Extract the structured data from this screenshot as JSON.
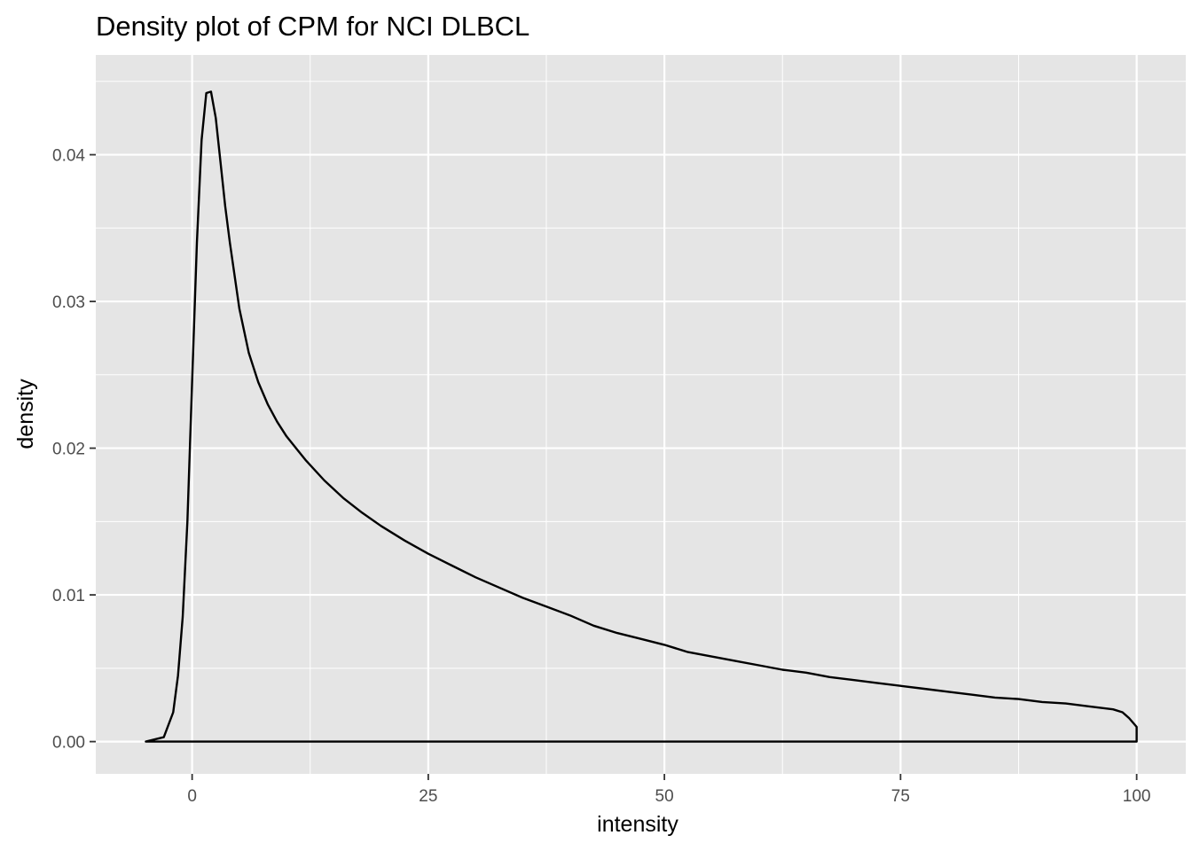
{
  "chart_data": {
    "type": "line",
    "title": "Density plot of CPM for NCI DLBCL",
    "xlabel": "intensity",
    "ylabel": "density",
    "xlim": [
      -10.2,
      105.2
    ],
    "ylim": [
      -0.0022,
      0.0468
    ],
    "x_ticks": [
      0,
      25,
      50,
      75,
      100
    ],
    "x_tick_labels": [
      "0",
      "25",
      "50",
      "75",
      "100"
    ],
    "y_ticks": [
      0.0,
      0.01,
      0.02,
      0.03,
      0.04
    ],
    "y_tick_labels": [
      "0.00",
      "0.01",
      "0.02",
      "0.03",
      "0.04"
    ],
    "grid": true,
    "legend": "none",
    "colors": {
      "panel": "#e5e5e5",
      "grid": "#ffffff",
      "line": "#000000",
      "tick_text": "#4d4d4d"
    },
    "series": [
      {
        "x": [
          -4.9,
          -3.0,
          -2.0,
          -1.5,
          -1.0,
          -0.5,
          0.0,
          0.5,
          1.0,
          1.5,
          2.0,
          2.5,
          3.0,
          3.5,
          4.0,
          5.0,
          6.0,
          7.0,
          8.0,
          9.0,
          10.0,
          12.0,
          14.0,
          16.0,
          18.0,
          20.0,
          22.5,
          25.0,
          27.5,
          30.0,
          32.5,
          35.0,
          37.5,
          40.0,
          42.5,
          45.0,
          47.5,
          50.0,
          52.5,
          55.0,
          57.5,
          60.0,
          62.5,
          65.0,
          67.5,
          70.0,
          72.5,
          75.0,
          77.5,
          80.0,
          82.5,
          85.0,
          87.5,
          90.0,
          92.5,
          95.0,
          97.5,
          98.5,
          99.2,
          100.0
        ],
        "y": [
          0.0,
          0.0003,
          0.002,
          0.0045,
          0.0085,
          0.015,
          0.0245,
          0.034,
          0.041,
          0.0442,
          0.0443,
          0.0425,
          0.0395,
          0.0365,
          0.034,
          0.0295,
          0.0265,
          0.0245,
          0.023,
          0.0218,
          0.0208,
          0.0192,
          0.0178,
          0.0166,
          0.0156,
          0.0147,
          0.0137,
          0.0128,
          0.012,
          0.0112,
          0.0105,
          0.0098,
          0.0092,
          0.0086,
          0.0079,
          0.0074,
          0.007,
          0.0066,
          0.0061,
          0.0058,
          0.0055,
          0.0052,
          0.0049,
          0.0047,
          0.0044,
          0.0042,
          0.004,
          0.0038,
          0.0036,
          0.0034,
          0.0032,
          0.003,
          0.0029,
          0.0027,
          0.0026,
          0.0024,
          0.0022,
          0.002,
          0.0016,
          0.001
        ]
      }
    ]
  }
}
